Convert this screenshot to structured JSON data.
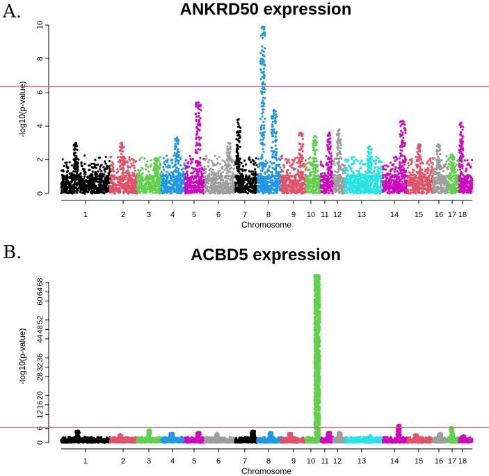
{
  "chart_data": [
    {
      "type": "scatter",
      "panel_label": "A.",
      "title": "ANKRD50 expression",
      "xlabel": "Chromosome",
      "ylabel": "-log10(p-value)",
      "ylim": [
        0,
        10
      ],
      "yticks": [
        0,
        2,
        4,
        6,
        8,
        10
      ],
      "threshold": 6.35,
      "threshold_color": "#e55a5a",
      "chromosomes": [
        "1",
        "2",
        "3",
        "4",
        "5",
        "6",
        "7",
        "8",
        "9",
        "10",
        "11",
        "12",
        "13",
        "14",
        "15",
        "16",
        "17",
        "18"
      ],
      "chromosome_colors": [
        "#000000",
        "#df536b",
        "#61d04f",
        "#2297e6",
        "#cd0bbc",
        "#9e9e9e",
        "#000000",
        "#2297e6",
        "#df536b",
        "#61d04f",
        "#cd0bbc",
        "#9e9e9e",
        "#28e2e5",
        "#cd0bbc",
        "#df536b",
        "#9e9e9e",
        "#61d04f",
        "#cd0bbc"
      ],
      "peak_values": [
        3.0,
        3.0,
        2.1,
        3.3,
        5.4,
        3.0,
        4.4,
        9.9,
        3.6,
        3.4,
        3.6,
        3.8,
        2.8,
        4.3,
        2.9,
        2.9,
        2.3,
        4.2
      ]
    },
    {
      "type": "scatter",
      "panel_label": "B.",
      "title": "ACBD5 expression",
      "xlabel": "Chromosome",
      "ylabel": "-log10(p-value)",
      "ylim": [
        0,
        72
      ],
      "yticks": [
        0,
        6,
        12,
        16,
        20,
        28,
        32,
        36,
        44,
        48,
        52,
        60,
        64,
        68
      ],
      "threshold": 6.4,
      "threshold_color": "#e55a5a",
      "chromosomes": [
        "1",
        "2",
        "3",
        "4",
        "5",
        "6",
        "7",
        "8",
        "9",
        "10",
        "11",
        "12",
        "13",
        "14",
        "15",
        "16",
        "17",
        "18"
      ],
      "chromosome_colors": [
        "#000000",
        "#df536b",
        "#61d04f",
        "#2297e6",
        "#cd0bbc",
        "#9e9e9e",
        "#000000",
        "#2297e6",
        "#df536b",
        "#61d04f",
        "#cd0bbc",
        "#9e9e9e",
        "#28e2e5",
        "#cd0bbc",
        "#df536b",
        "#9e9e9e",
        "#61d04f",
        "#cd0bbc"
      ],
      "peak_values": [
        5.0,
        3.5,
        5.5,
        4.0,
        4.5,
        4.0,
        5.0,
        4.5,
        4.0,
        71.0,
        4.5,
        4.5,
        3.0,
        7.5,
        3.5,
        4.0,
        6.5,
        3.0
      ]
    }
  ]
}
